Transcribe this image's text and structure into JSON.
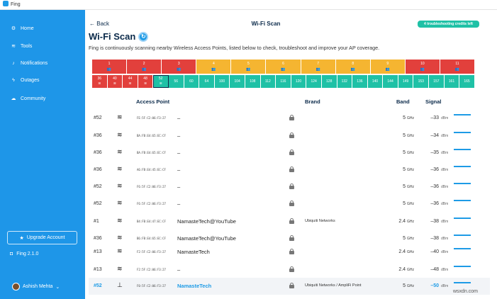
{
  "app": {
    "title": "Fing"
  },
  "sidebar": {
    "items": [
      {
        "label": "Home",
        "icon": "gear-icon"
      },
      {
        "label": "Tools",
        "icon": "wifi-icon"
      },
      {
        "label": "Notifications",
        "icon": "bell-icon"
      },
      {
        "label": "Outages",
        "icon": "bolt-icon"
      },
      {
        "label": "Community",
        "icon": "chat-icon"
      }
    ],
    "upgrade_label": "Upgrade Account",
    "version": "Fing 2.1.0",
    "user": "Ashish Mehta"
  },
  "header": {
    "back_label": "Back",
    "page_title": "Wi-Fi Scan",
    "credits": "4 troubleshooting credits left"
  },
  "scan": {
    "title": "Wi-Fi Scan",
    "subtitle": "Fing is continuously scanning nearby Wireless Access Points, listed below to check, troubleshoot and improve your AP coverage."
  },
  "channels_24": [
    {
      "ch": "1",
      "status": "red"
    },
    {
      "ch": "2",
      "status": "red"
    },
    {
      "ch": "3",
      "status": "red"
    },
    {
      "ch": "4",
      "status": "yellow"
    },
    {
      "ch": "5",
      "status": "yellow"
    },
    {
      "ch": "6",
      "status": "yellow"
    },
    {
      "ch": "7",
      "status": "yellow"
    },
    {
      "ch": "8",
      "status": "yellow"
    },
    {
      "ch": "9",
      "status": "yellow"
    },
    {
      "ch": "10",
      "status": "red"
    },
    {
      "ch": "11",
      "status": "red"
    }
  ],
  "channels_5": [
    {
      "ch": "36",
      "status": "red"
    },
    {
      "ch": "40",
      "status": "red"
    },
    {
      "ch": "44",
      "status": "red"
    },
    {
      "ch": "48",
      "status": "red"
    },
    {
      "ch": "52",
      "status": "green-outline"
    },
    {
      "ch": "56",
      "status": "green"
    },
    {
      "ch": "60",
      "status": "green"
    },
    {
      "ch": "64",
      "status": "green"
    },
    {
      "ch": "100",
      "status": "green"
    },
    {
      "ch": "104",
      "status": "green"
    },
    {
      "ch": "108",
      "status": "green"
    },
    {
      "ch": "112",
      "status": "green"
    },
    {
      "ch": "116",
      "status": "green"
    },
    {
      "ch": "120",
      "status": "green"
    },
    {
      "ch": "124",
      "status": "green"
    },
    {
      "ch": "128",
      "status": "green"
    },
    {
      "ch": "132",
      "status": "green"
    },
    {
      "ch": "136",
      "status": "green"
    },
    {
      "ch": "140",
      "status": "green"
    },
    {
      "ch": "144",
      "status": "green"
    },
    {
      "ch": "149",
      "status": "green"
    },
    {
      "ch": "153",
      "status": "green"
    },
    {
      "ch": "157",
      "status": "green"
    },
    {
      "ch": "161",
      "status": "green"
    },
    {
      "ch": "165",
      "status": "green"
    }
  ],
  "colors": {
    "red": "#e2403c",
    "yellow": "#f5b531",
    "green": "#1fc1a6",
    "accent": "#1e9be6",
    "sidebar": "#1e96e8"
  },
  "table": {
    "headers": {
      "access_point": "Access Point",
      "brand": "Brand",
      "band": "Band",
      "signal": "Signal"
    },
    "rows": [
      {
        "ch": "#52",
        "mac": "FE:5F:C2:06:F3:27",
        "ssid": "–",
        "brand": "",
        "band": "5",
        "unit_band": "GHz",
        "signal": "–33",
        "unit": "dBm",
        "level": 1.0
      },
      {
        "ch": "#36",
        "mac": "BA:FB:E4:65:EC:CF",
        "ssid": "–",
        "brand": "",
        "band": "5",
        "unit_band": "GHz",
        "signal": "–34",
        "unit": "dBm",
        "level": 1.0
      },
      {
        "ch": "#36",
        "mac": "BA:FB:E4:65:EC:CF",
        "ssid": "–",
        "brand": "",
        "band": "5",
        "unit_band": "GHz",
        "signal": "–35",
        "unit": "dBm",
        "level": 1.0
      },
      {
        "ch": "#36",
        "mac": "A6:FB:E4:45:EC:CF",
        "ssid": "–",
        "brand": "",
        "band": "5",
        "unit_band": "GHz",
        "signal": "–36",
        "unit": "dBm",
        "level": 1.0
      },
      {
        "ch": "#52",
        "mac": "F6:5F:C2:06:F3:27",
        "ssid": "–",
        "brand": "",
        "band": "5",
        "unit_band": "GHz",
        "signal": "–36",
        "unit": "dBm",
        "level": 1.0
      },
      {
        "ch": "#52",
        "mac": "F6:5F:C2:06:F3:27",
        "ssid": "–",
        "brand": "",
        "band": "5",
        "unit_band": "GHz",
        "signal": "–36",
        "unit": "dBm",
        "level": 1.0
      },
      {
        "ch": "#1",
        "mac": "B4:FB:E4:47:EC:CF",
        "ssid": "NamasteTech@YouTube",
        "brand": "Ubiquiti Networks",
        "band": "2.4",
        "unit_band": "GHz",
        "signal": "–38",
        "unit": "dBm",
        "level": 1.0
      },
      {
        "ch": "#36",
        "mac": "B6:FB:E4:65:EC:CF",
        "ssid": "NamasteTech@YouTube",
        "brand": "",
        "band": "5",
        "unit_band": "GHz",
        "signal": "–38",
        "unit": "dBm",
        "level": 1.0
      },
      {
        "ch": "#13",
        "mac": "F2:5F:C2:06:F3:27",
        "ssid": "NamasteTech",
        "brand": "",
        "band": "2.4",
        "unit_band": "GHz",
        "signal": "–40",
        "unit": "dBm",
        "level": 1.0
      },
      {
        "ch": "#13",
        "mac": "F2:5F:C2:06:F3:27",
        "ssid": "–",
        "brand": "",
        "band": "2.4",
        "unit_band": "GHz",
        "signal": "–48",
        "unit": "dBm",
        "level": 1.0
      },
      {
        "ch": "#52",
        "mac": "F0:5F:C2:06:F3:27",
        "ssid": "NamasteTech",
        "brand": "Ubiquiti Networks / AmpliFi Point",
        "band": "5",
        "unit_band": "GHz",
        "signal": "–50",
        "unit": "dBm",
        "level": 1.0
      }
    ]
  },
  "watermark": "wsxdn.com"
}
